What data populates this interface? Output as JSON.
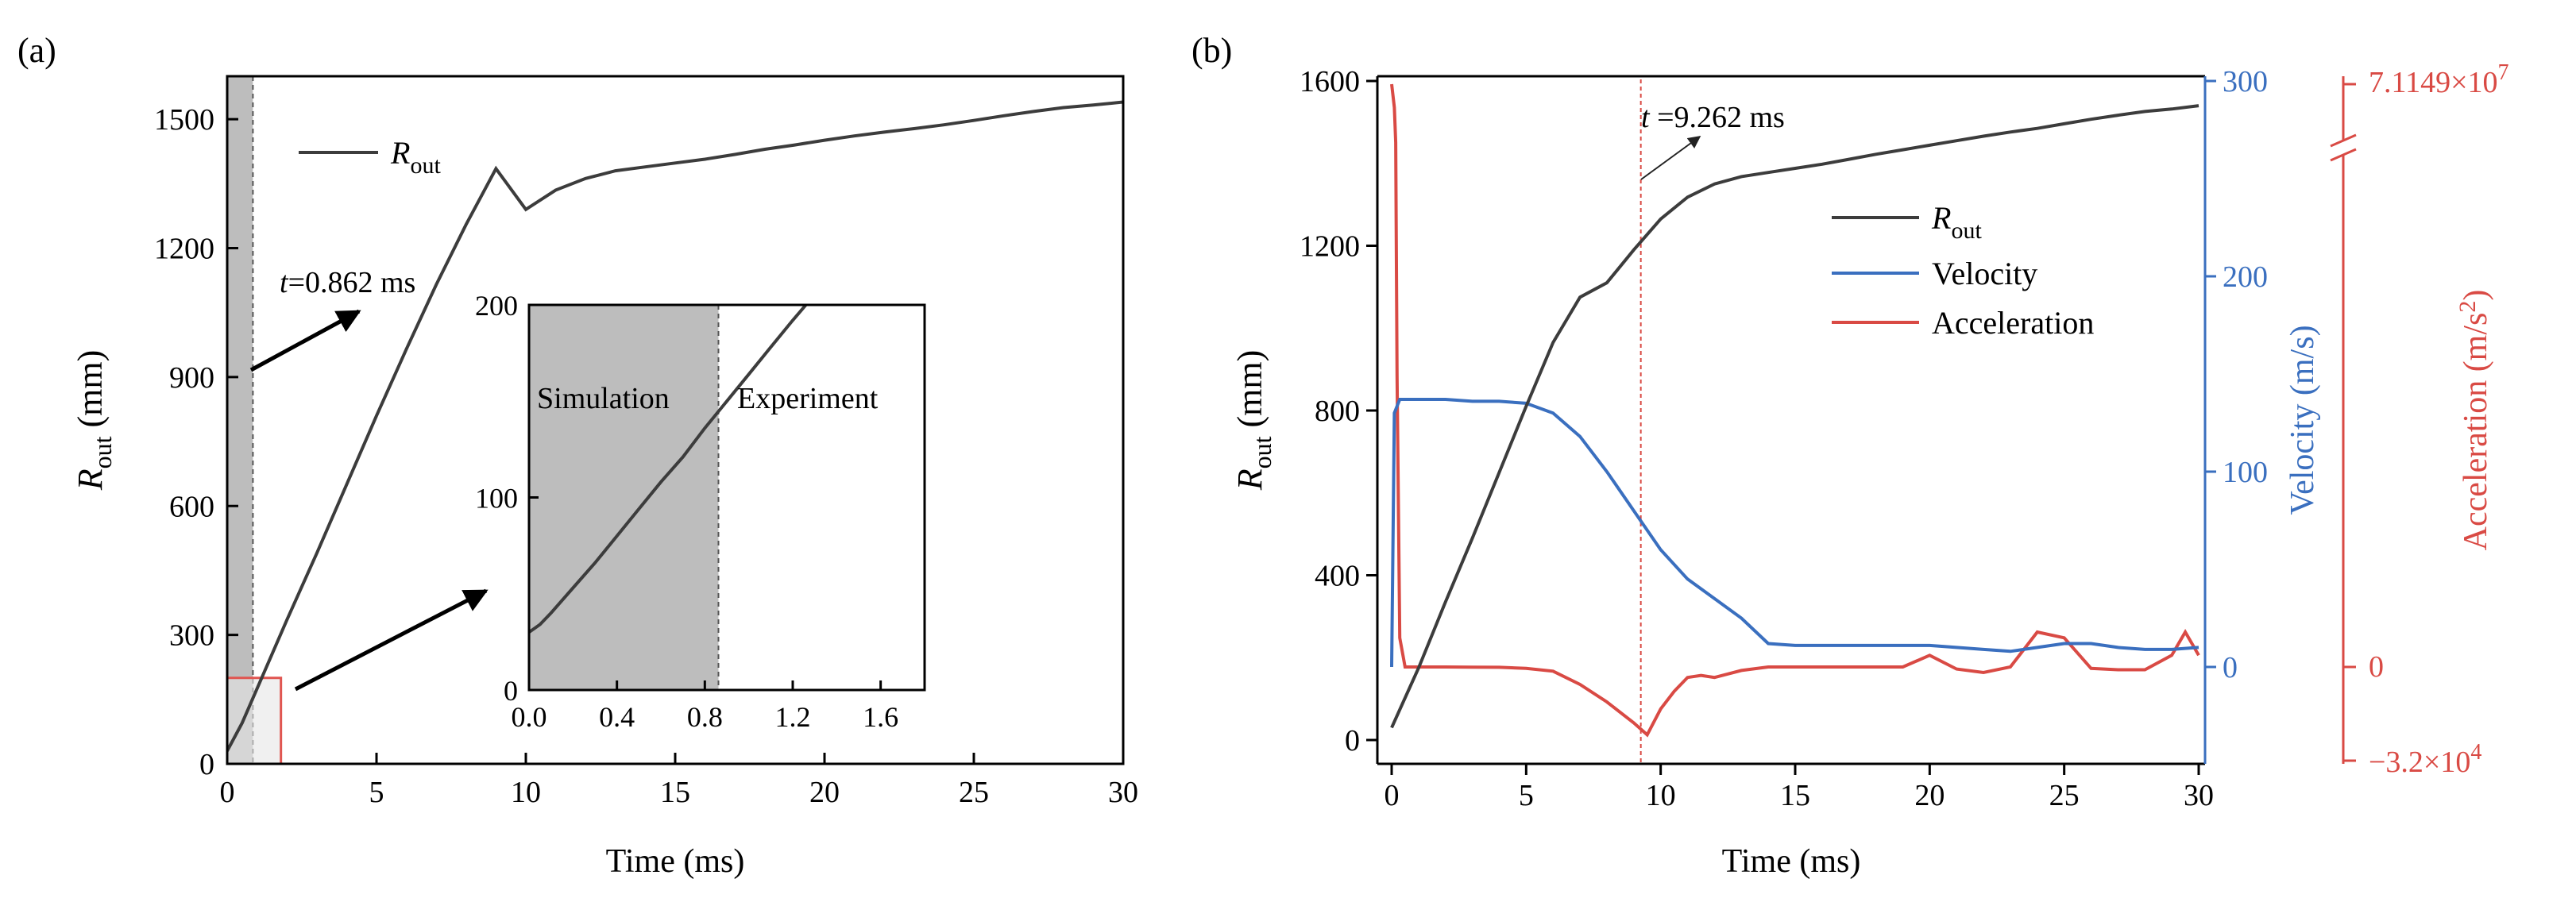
{
  "colors": {
    "black_line": "#3c3c3c",
    "blue": "#3a6fbf",
    "red": "#d94a44",
    "shade": "#bdbdbd",
    "light_shade": "#e6e6e6"
  },
  "chart_data": [
    {
      "panel": "(a)",
      "type": "line",
      "xlabel": "Time (ms)",
      "ylabel": "R_out (mm)",
      "ylabel_main": "R",
      "ylabel_sub": "out",
      "ylabel_unit": " (mm)",
      "xlim": [
        0,
        30
      ],
      "ylim": [
        0,
        1600
      ],
      "xticks": [
        0,
        5,
        10,
        15,
        20,
        25,
        30
      ],
      "yticks": [
        0,
        300,
        600,
        900,
        1200,
        1500
      ],
      "legend": {
        "main": "R",
        "sub": "out"
      },
      "legend_position": "top-left",
      "shaded_region_x": [
        0,
        0.862
      ],
      "annotation": {
        "italic": "t",
        "rest": "=0.862 ms"
      },
      "series": [
        {
          "name": "R_out",
          "x": [
            0,
            0.5,
            1,
            2,
            3,
            4,
            5,
            6,
            7,
            8,
            9,
            10,
            11,
            12,
            13,
            14,
            15,
            16,
            17,
            18,
            19,
            20,
            21,
            22,
            23,
            24,
            25,
            26,
            27,
            28,
            29,
            30
          ],
          "y": [
            30,
            95,
            175,
            335,
            490,
            650,
            810,
            965,
            1115,
            1255,
            1385,
            1290,
            1335,
            1362,
            1380,
            1389,
            1398,
            1407,
            1418,
            1430,
            1440,
            1451,
            1461,
            1470,
            1478,
            1487,
            1497,
            1508,
            1518,
            1527,
            1533,
            1540
          ]
        }
      ],
      "inset": {
        "xlim": [
          0,
          1.8
        ],
        "ylim": [
          0,
          200
        ],
        "xticks": [
          0.0,
          0.4,
          0.8,
          1.2,
          1.6
        ],
        "xtick_labels": [
          "0.0",
          "0.4",
          "0.8",
          "1.2",
          "1.6"
        ],
        "yticks": [
          0,
          100,
          200
        ],
        "shaded_region_x": [
          0,
          0.862
        ],
        "labels": [
          "Simulation",
          "Experiment"
        ],
        "x": [
          0,
          0.05,
          0.1,
          0.2,
          0.3,
          0.4,
          0.5,
          0.6,
          0.7,
          0.8,
          0.9,
          1.0,
          1.1,
          1.2,
          1.26
        ],
        "y": [
          30,
          34,
          40,
          53,
          66,
          80,
          94,
          108,
          121,
          136,
          150,
          164,
          178,
          192,
          200
        ]
      }
    },
    {
      "panel": "(b)",
      "type": "line",
      "xlabel": "Time (ms)",
      "ylabel_main": "R",
      "ylabel_sub": "out",
      "ylabel_unit": " (mm)",
      "y2label": "Velocity (m/s)",
      "y3label_text": "Acceleration (m/s",
      "y3label_sup": "2",
      "y3label_close": ")",
      "xlim": [
        0,
        30
      ],
      "ylim": [
        -50,
        1600
      ],
      "y2lim": [
        -50,
        300
      ],
      "xticks": [
        0,
        5,
        10,
        15,
        20,
        25,
        30
      ],
      "yticks": [
        0,
        400,
        800,
        1200,
        1600
      ],
      "y2ticks": [
        0,
        100,
        200,
        300
      ],
      "y3_top_label": {
        "base": "7.1149×10",
        "exp": "7"
      },
      "y3_bottom_label": {
        "base": "−3.2×10",
        "exp": "4"
      },
      "y3_zero_label": "0",
      "annotation": {
        "italic": "t",
        "rest": " =9.262 ms"
      },
      "vline_x": 9.262,
      "legend_position": "top-right",
      "legend": [
        {
          "main": "R",
          "sub": "out"
        },
        {
          "main": "Velocity",
          "sub": ""
        },
        {
          "main": "Acceleration",
          "sub": ""
        }
      ],
      "series": [
        {
          "name": "R_out",
          "axis": "left",
          "x": [
            0,
            1,
            2,
            3,
            4,
            5,
            6,
            7,
            8,
            9,
            10,
            11,
            12,
            13,
            14,
            15,
            16,
            17,
            18,
            19,
            20,
            21,
            22,
            23,
            24,
            25,
            26,
            27,
            28,
            29,
            30
          ],
          "y": [
            30,
            175,
            335,
            490,
            650,
            810,
            965,
            1075,
            1110,
            1190,
            1265,
            1318,
            1350,
            1368,
            1378,
            1388,
            1398,
            1410,
            1422,
            1433,
            1444,
            1455,
            1466,
            1476,
            1485,
            1496,
            1507,
            1517,
            1526,
            1532,
            1540
          ]
        },
        {
          "name": "Velocity",
          "axis": "right",
          "x": [
            0,
            0.1,
            0.3,
            0.5,
            1,
            2,
            3,
            4,
            5,
            6,
            7,
            8,
            9,
            10,
            11,
            12,
            13,
            14,
            15,
            16,
            17,
            18,
            19,
            20,
            21,
            22,
            23,
            24,
            25,
            26,
            27,
            28,
            29,
            30
          ],
          "y": [
            0,
            130,
            137,
            137,
            137,
            137,
            136,
            136,
            135,
            130,
            118,
            100,
            80,
            60,
            45,
            35,
            25,
            12,
            11,
            11,
            11,
            11,
            11,
            11,
            10,
            9,
            8,
            10,
            12,
            12,
            10,
            9,
            9,
            10
          ]
        },
        {
          "name": "Acceleration",
          "axis": "accel",
          "x": [
            0,
            0.05,
            0.1,
            0.15,
            0.2,
            0.3,
            0.5,
            1,
            2,
            3,
            4,
            5,
            6,
            7,
            8,
            9,
            9.5,
            10,
            10.5,
            11,
            11.5,
            12,
            12.5,
            13,
            14,
            15,
            16,
            17,
            18,
            19,
            20,
            21,
            22,
            23,
            24,
            25,
            26,
            27,
            28,
            29,
            29.5,
            30
          ],
          "y": [
            1,
            0.98,
            0.96,
            0.9,
            0.5,
            0.05,
            0.0,
            0.0,
            0.0,
            -0.002,
            -0.005,
            -0.02,
            -0.06,
            -0.25,
            -0.5,
            -0.8,
            -0.97,
            -0.6,
            -0.35,
            -0.15,
            -0.12,
            -0.15,
            -0.1,
            -0.05,
            0.0,
            0.0,
            0.0,
            0.0,
            0.0,
            0.0,
            0.02,
            -0.03,
            -0.08,
            0.0,
            0.06,
            0.05,
            -0.02,
            -0.04,
            -0.04,
            0.02,
            0.06,
            0.02
          ]
        }
      ]
    }
  ]
}
